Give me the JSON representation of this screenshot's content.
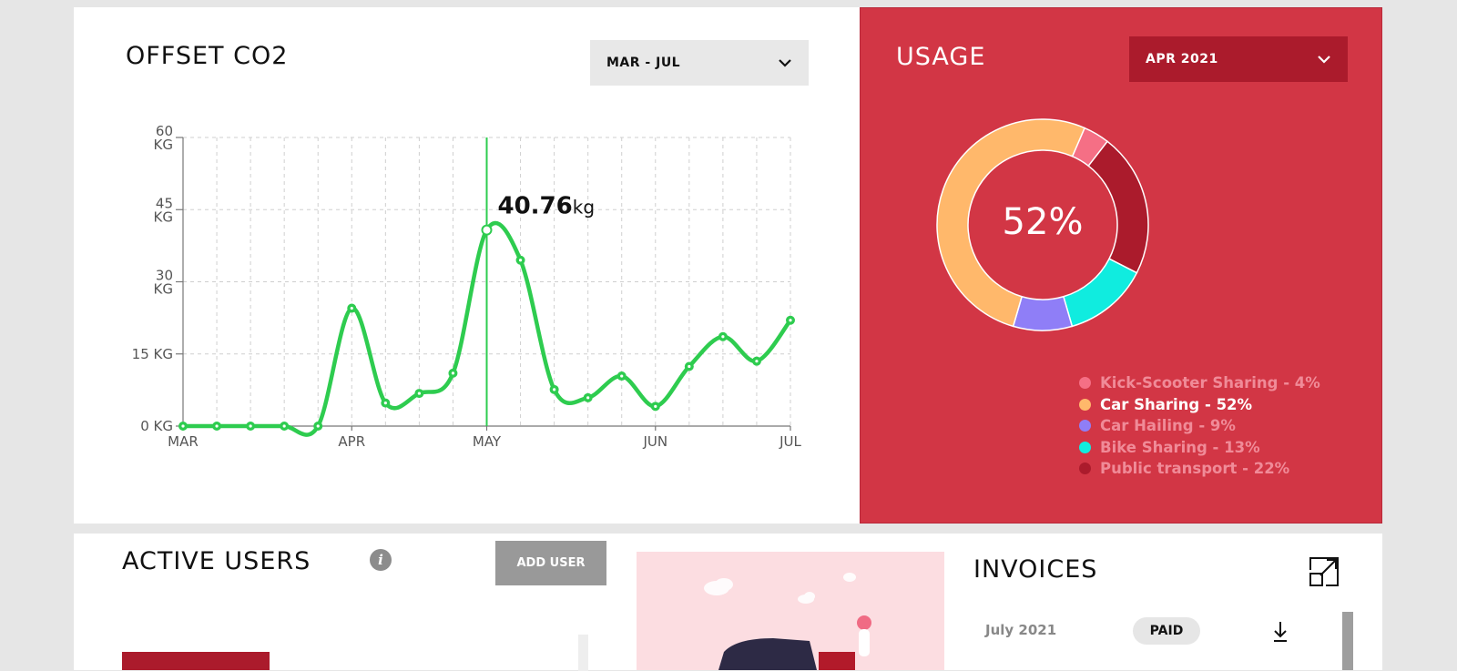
{
  "offset": {
    "title": "OFFSET CO2",
    "range_select": "MAR - JUL",
    "tooltip_value": "40.76",
    "tooltip_unit": "kg"
  },
  "chart_data": {
    "type": "line",
    "title": "OFFSET CO2",
    "ylim": [
      0,
      60
    ],
    "y_ticks": [
      {
        "value": 0,
        "label": [
          "0 KG"
        ]
      },
      {
        "value": 15,
        "label": [
          "15 KG"
        ]
      },
      {
        "value": 30,
        "label": [
          "30",
          "KG"
        ]
      },
      {
        "value": 45,
        "label": [
          "45",
          "KG"
        ]
      },
      {
        "value": 60,
        "label": [
          "60",
          "KG"
        ]
      }
    ],
    "x_ticks": [
      {
        "index": 0,
        "label": "MAR"
      },
      {
        "index": 5,
        "label": "APR"
      },
      {
        "index": 9,
        "label": "MAY"
      },
      {
        "index": 14,
        "label": "JUN"
      },
      {
        "index": 18,
        "label": "JUL"
      }
    ],
    "series": [
      {
        "color": "#2ecc4f",
        "values": [
          0,
          0,
          0,
          0,
          0,
          24.5,
          4.8,
          6.8,
          11,
          40.76,
          34.5,
          7.6,
          5.9,
          10.4,
          4.1,
          12.4,
          18.6,
          13.5,
          22
        ]
      }
    ],
    "highlight_index": 9,
    "grid": true
  },
  "usage": {
    "title": "USAGE",
    "month_select": "APR 2021",
    "center_label": "52%",
    "segments": [
      {
        "label": "Kick-Scooter Sharing - 4%",
        "value": 4,
        "color": "#f56f85",
        "active": false
      },
      {
        "label": "Car Sharing - 52%",
        "value": 52,
        "color": "#ffb86b",
        "active": true
      },
      {
        "label": "Car Hailing - 9%",
        "value": 9,
        "color": "#8f7ef7",
        "active": false
      },
      {
        "label": "Bike Sharing - 13%",
        "value": 13,
        "color": "#10ecdf",
        "active": false
      },
      {
        "label": "Public transport - 22%",
        "value": 22,
        "color": "#ab1b2c",
        "active": false
      }
    ]
  },
  "active_users": {
    "title": "ACTIVE USERS",
    "info_glyph": "i",
    "add_user_label": "ADD USER"
  },
  "invoices": {
    "title": "INVOICES",
    "rows": [
      {
        "month": "July 2021",
        "status": "PAID"
      }
    ]
  }
}
